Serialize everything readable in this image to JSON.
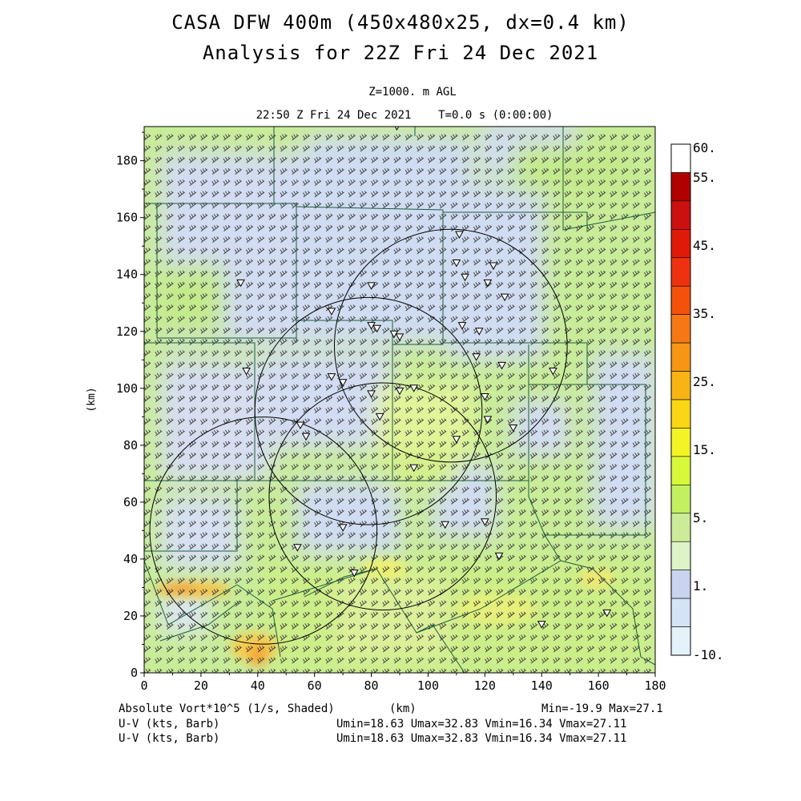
{
  "header": {
    "title_line1": "CASA DFW 400m (450x480x25, dx=0.4 km)",
    "title_line2": "Analysis for 22Z Fri 24 Dec 2021",
    "level": "Z=1000. m AGL",
    "valid_time": "22:50 Z Fri 24 Dec 2021    T=0.0 s (0:00:00)"
  },
  "map": {
    "x_axis_label": "(km)",
    "y_axis_label": "(km)",
    "x_ticks": [
      0,
      20,
      40,
      60,
      80,
      100,
      120,
      140,
      160,
      180
    ],
    "y_ticks": [
      0,
      20,
      40,
      60,
      80,
      100,
      120,
      140,
      160,
      180
    ],
    "x_range": [
      0,
      180
    ],
    "y_range": [
      0,
      192
    ],
    "field_colors": {
      "background_low": "#cfdcf2",
      "mid": "#c8ec98",
      "high": "#f2d84a",
      "peak": "#f5a030",
      "barb_color": "#3a3a3a",
      "boundary_color": "#1f5a3e",
      "radar_ring_color": "#000000"
    },
    "radar_rings_km": [
      {
        "cx": 108,
        "cy": 115,
        "r": 41
      },
      {
        "cx": 79,
        "cy": 92,
        "r": 40
      },
      {
        "cx": 84,
        "cy": 62,
        "r": 40
      },
      {
        "cx": 42,
        "cy": 50,
        "r": 40
      }
    ],
    "station_marks_km": [
      [
        89,
        192
      ],
      [
        111,
        154
      ],
      [
        110,
        144
      ],
      [
        123,
        143
      ],
      [
        113,
        139
      ],
      [
        121,
        137
      ],
      [
        34,
        137
      ],
      [
        80,
        136
      ],
      [
        127,
        132
      ],
      [
        66,
        127
      ],
      [
        80,
        122
      ],
      [
        88,
        119
      ],
      [
        82,
        121
      ],
      [
        112,
        122
      ],
      [
        118,
        120
      ],
      [
        90,
        118
      ],
      [
        117,
        111
      ],
      [
        126,
        108
      ],
      [
        144,
        106
      ],
      [
        36,
        106
      ],
      [
        66,
        104
      ],
      [
        70,
        102
      ],
      [
        80,
        98
      ],
      [
        90,
        99
      ],
      [
        95,
        100
      ],
      [
        120,
        97
      ],
      [
        121,
        89
      ],
      [
        130,
        86
      ],
      [
        55,
        87
      ],
      [
        57,
        83
      ],
      [
        83,
        90
      ],
      [
        110,
        82
      ],
      [
        95,
        72
      ],
      [
        120,
        53
      ],
      [
        106,
        52
      ],
      [
        70,
        51
      ],
      [
        54,
        44
      ],
      [
        125,
        41
      ],
      [
        74,
        35
      ],
      [
        140,
        17
      ],
      [
        163,
        21
      ]
    ]
  },
  "colorbar": {
    "labels": [
      "60.",
      "55.",
      "45.",
      "35.",
      "25.",
      "15.",
      "5.",
      "1.",
      "-10."
    ],
    "colors": [
      "#ffffff",
      "#b00000",
      "#cc1010",
      "#e01a08",
      "#ee3210",
      "#f4520a",
      "#f67814",
      "#f69614",
      "#f8b414",
      "#fad614",
      "#f4f424",
      "#d8f83a",
      "#c2f060",
      "#ccec9a",
      "#dcf4c8",
      "#c8d4f0",
      "#d4e4f6",
      "#e4f2fa"
    ]
  },
  "footer": {
    "field_label": "Absolute Vort*10^5 (1/s, Shaded)",
    "x_unit": "(km)",
    "min_max": "Min=-19.9 Max=27.1",
    "barb_label_1": "U-V (kts, Barb)",
    "barb_stats_1": "Umin=18.63 Umax=32.83 Vmin=16.34 Vmax=27.11",
    "barb_label_2": "U-V (kts, Barb)",
    "barb_stats_2": "Umin=18.63 Umax=32.83 Vmin=16.34 Vmax=27.11"
  }
}
